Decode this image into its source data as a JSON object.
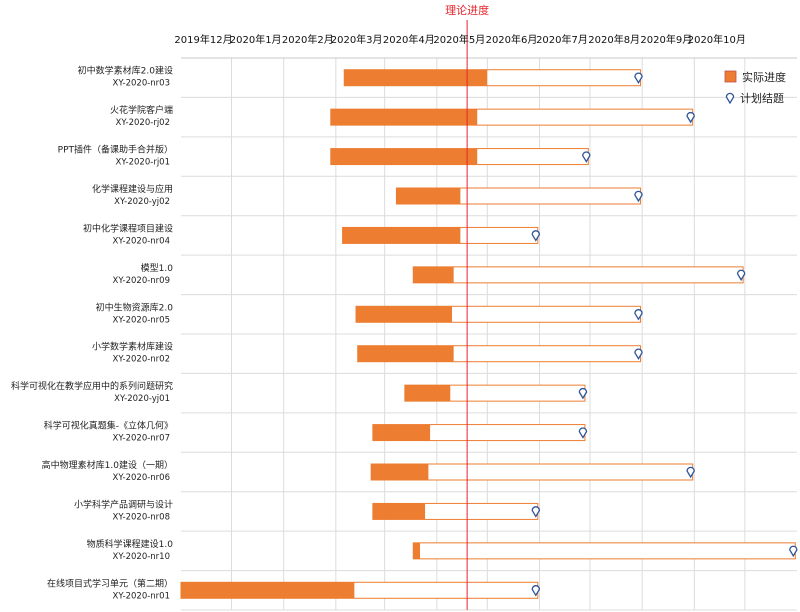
{
  "chart_data": {
    "type": "gantt",
    "reference_line": {
      "label": "理论进度",
      "date": "2020-04-19",
      "color": "#e8242d"
    },
    "x_ticks": [
      {
        "label": "2019年12月",
        "date": "2019-12-01"
      },
      {
        "label": "2020年1月",
        "date": "2020-01-01"
      },
      {
        "label": "2020年2月",
        "date": "2020-02-01"
      },
      {
        "label": "2020年3月",
        "date": "2020-03-01"
      },
      {
        "label": "2020年4月",
        "date": "2020-04-01"
      },
      {
        "label": "2020年5月",
        "date": "2020-05-01"
      },
      {
        "label": "2020年6月",
        "date": "2020-06-01"
      },
      {
        "label": "2020年7月",
        "date": "2020-07-01"
      },
      {
        "label": "2020年8月",
        "date": "2020-08-01"
      },
      {
        "label": "2020年9月",
        "date": "2020-09-01"
      },
      {
        "label": "2020年10月",
        "date": "2020-10-01"
      }
    ],
    "x_range": [
      "2019-11-01",
      "2020-11-01"
    ],
    "grid": true,
    "legend": {
      "position": "top-right",
      "items": [
        {
          "label": "实际进度",
          "marker": "square",
          "color": "#ed7d31"
        },
        {
          "label": "计划结题",
          "marker": "pin",
          "color": "#2f5597"
        }
      ]
    },
    "colors": {
      "actual": "#ed7d31",
      "plan_outline": "#ed7d31",
      "plan_fill": "#ffffff",
      "grid": "#dcdcdc",
      "pin": "#2f5597"
    },
    "tasks": [
      {
        "name": "初中数学素材库2.0建设",
        "code": "XY-2020-nr03",
        "start": "2020-02-06",
        "actual_end": "2020-05-01",
        "plan_end": "2020-07-31"
      },
      {
        "name": "火花学院客户端",
        "code": "XY-2020-rj02",
        "start": "2020-01-29",
        "actual_end": "2020-04-25",
        "plan_end": "2020-08-31"
      },
      {
        "name": "PPT插件（备课助手合并版）",
        "code": "XY-2020-rj01",
        "start": "2020-01-29",
        "actual_end": "2020-04-25",
        "plan_end": "2020-06-30"
      },
      {
        "name": "化学课程建设与应用",
        "code": "XY-2020-yj02",
        "start": "2020-03-08",
        "actual_end": "2020-04-15",
        "plan_end": "2020-07-31"
      },
      {
        "name": "初中化学课程项目建设",
        "code": "XY-2020-nr04",
        "start": "2020-02-05",
        "actual_end": "2020-04-15",
        "plan_end": "2020-05-31"
      },
      {
        "name": "模型1.0",
        "code": "XY-2020-nr09",
        "start": "2020-03-18",
        "actual_end": "2020-04-11",
        "plan_end": "2020-09-30"
      },
      {
        "name": "初中生物资源库2.0",
        "code": "XY-2020-nr05",
        "start": "2020-02-13",
        "actual_end": "2020-04-10",
        "plan_end": "2020-07-31"
      },
      {
        "name": "小学数学素材库建设",
        "code": "XY-2020-nr02",
        "start": "2020-02-14",
        "actual_end": "2020-04-11",
        "plan_end": "2020-07-31"
      },
      {
        "name": "科学可视化在教学应用中的系列问题研究",
        "code": "XY-2020-yj01",
        "start": "2020-03-13",
        "actual_end": "2020-04-09",
        "plan_end": "2020-06-28"
      },
      {
        "name": "科学可视化真题集-《立体几何》",
        "code": "XY-2020-nr07",
        "start": "2020-02-23",
        "actual_end": "2020-03-28",
        "plan_end": "2020-06-28"
      },
      {
        "name": "高中物理素材库1.0建设（一期）",
        "code": "XY-2020-nr06",
        "start": "2020-02-22",
        "actual_end": "2020-03-27",
        "plan_end": "2020-08-31"
      },
      {
        "name": "小学科学产品调研与设计",
        "code": "XY-2020-nr08",
        "start": "2020-02-23",
        "actual_end": "2020-03-25",
        "plan_end": "2020-05-31"
      },
      {
        "name": "物质科学课程建设1.0",
        "code": "XY-2020-nr10",
        "start": "2020-03-18",
        "actual_end": "2020-03-22",
        "plan_end": "2020-10-31"
      },
      {
        "name": "在线项目式学习单元（第二期）",
        "code": "XY-2020-nr01",
        "start": "2019-11-01",
        "actual_end": "2020-02-12",
        "plan_end": "2020-05-31"
      }
    ]
  }
}
